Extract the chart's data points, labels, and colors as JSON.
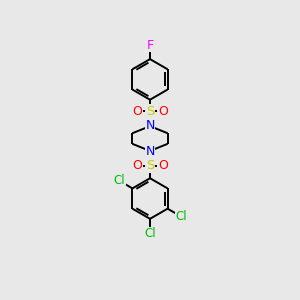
{
  "background_color": "#e8e8e8",
  "bond_color": "#000000",
  "F_color": "#ff00ff",
  "N_color": "#0000ee",
  "O_color": "#ff0000",
  "S_color": "#cccc00",
  "Cl_color": "#00bb00",
  "line_width": 1.4,
  "figsize": [
    3.0,
    3.0
  ],
  "dpi": 100,
  "xlim": [
    0,
    10
  ],
  "ylim": [
    0,
    17
  ]
}
